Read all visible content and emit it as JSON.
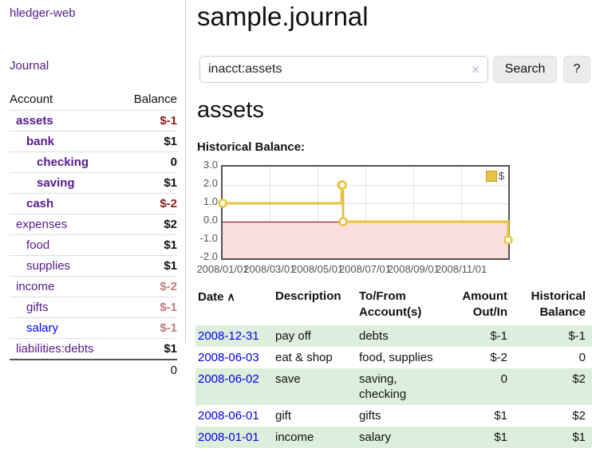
{
  "app": {
    "brand": "hledger-web",
    "nav_journal": "Journal"
  },
  "sidebar": {
    "headers": {
      "account": "Account",
      "balance": "Balance"
    },
    "accounts": [
      {
        "name": "assets",
        "balance": "$-1",
        "level": 1,
        "bold": true,
        "balance_style": "neg"
      },
      {
        "name": "bank",
        "balance": "$1",
        "level": 2,
        "bold": true,
        "balance_style": "pos"
      },
      {
        "name": "checking",
        "balance": "0",
        "level": 3,
        "bold": true,
        "balance_style": "pos"
      },
      {
        "name": "saving",
        "balance": "$1",
        "level": 3,
        "bold": true,
        "balance_style": "pos"
      },
      {
        "name": "cash",
        "balance": "$-2",
        "level": 2,
        "bold": true,
        "balance_style": "neg"
      },
      {
        "name": "expenses",
        "balance": "$2",
        "level": 1,
        "bold": false,
        "balance_style": "pos"
      },
      {
        "name": "food",
        "balance": "$1",
        "level": 2,
        "bold": false,
        "balance_style": "pos"
      },
      {
        "name": "supplies",
        "balance": "$1",
        "level": 2,
        "bold": false,
        "balance_style": "pos"
      },
      {
        "name": "income",
        "balance": "$-2",
        "level": 1,
        "bold": false,
        "balance_style": "dim"
      },
      {
        "name": "gifts",
        "balance": "$-1",
        "level": 2,
        "bold": false,
        "balance_style": "dim"
      },
      {
        "name": "salary",
        "balance": "$-1",
        "level": 2,
        "bold": false,
        "balance_style": "dim",
        "link_color": "blue"
      },
      {
        "name": "liabilities:debts",
        "balance": "$1",
        "level": 1,
        "bold": false,
        "balance_style": "pos"
      }
    ],
    "total": "0"
  },
  "header": {
    "title": "sample.journal"
  },
  "search": {
    "query": "inacct:assets",
    "clear_icon": "×",
    "button_label": "Search",
    "help_label": "?"
  },
  "account_page": {
    "heading": "assets",
    "chart_label": "Historical Balance:"
  },
  "chart_data": {
    "type": "line",
    "step": true,
    "title": "Historical Balance",
    "series": [
      {
        "name": "$",
        "color": "#e8c240",
        "points": [
          [
            "2008-01-01",
            1
          ],
          [
            "2008-06-01",
            2
          ],
          [
            "2008-06-02",
            2
          ],
          [
            "2008-06-03",
            0
          ],
          [
            "2008-12-31",
            -1
          ]
        ]
      }
    ],
    "x_range": [
      "2008-01-01",
      "2008-12-31"
    ],
    "ylim": [
      -2,
      3
    ],
    "y_ticks": [
      "3.0",
      "2.0",
      "1.0",
      "0.0",
      "-1.0",
      "-2.0"
    ],
    "x_tick_labels": [
      "2008/01/01",
      "2008/03/01",
      "2008/05/01",
      "2008/07/01",
      "2008/09/01",
      "2008/11/01"
    ],
    "grid": true,
    "legend": {
      "label": "$",
      "position": "top-right"
    },
    "negative_region_color": "#fbdede",
    "zero_line_color": "#8b0000"
  },
  "register": {
    "headers": {
      "date": "Date",
      "sort_icon": "∧",
      "description": "Description",
      "accounts": "To/From Account(s)",
      "amount": "Amount Out/In",
      "balance": "Historical Balance"
    },
    "rows": [
      {
        "date": "2008-12-31",
        "description": "pay off",
        "accounts": "debts",
        "amount": "$-1",
        "balance": "$-1",
        "amount_neg": true,
        "balance_neg": true
      },
      {
        "date": "2008-06-03",
        "description": "eat & shop",
        "accounts": "food, supplies",
        "amount": "$-2",
        "balance": "0",
        "amount_neg": true,
        "balance_neg": false
      },
      {
        "date": "2008-06-02",
        "description": "save",
        "accounts": "saving, checking",
        "amount": "0",
        "balance": "$2",
        "amount_neg": false,
        "balance_neg": false
      },
      {
        "date": "2008-06-01",
        "description": "gift",
        "accounts": "gifts",
        "amount": "$1",
        "balance": "$2",
        "amount_neg": false,
        "balance_neg": false
      },
      {
        "date": "2008-01-01",
        "description": "income",
        "accounts": "salary",
        "amount": "$1",
        "balance": "$1",
        "amount_neg": false,
        "balance_neg": false
      }
    ]
  }
}
